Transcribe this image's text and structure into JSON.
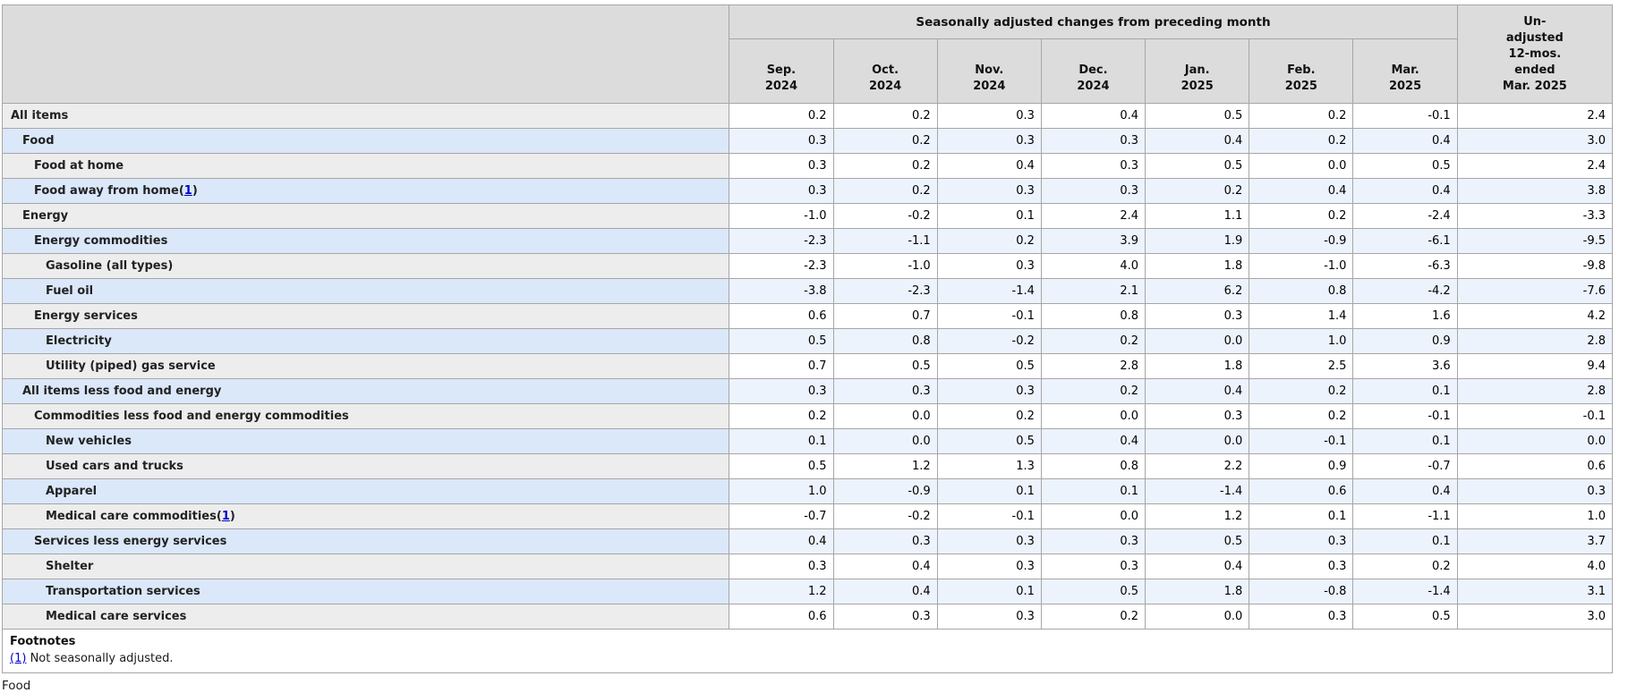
{
  "colors": {
    "header_bg": "#dcdcdc",
    "row_gray": "#ededed",
    "row_blue": "#dbe8fa",
    "data_blue": "#edf3fc",
    "border": "#a6a6a6",
    "link": "#0000cc"
  },
  "table": {
    "group_header": "Seasonally adjusted changes from preceding month",
    "unadjusted_header_lines": [
      "Un-",
      "adjusted",
      "12-mos.",
      "ended",
      "Mar. 2025"
    ],
    "columns": [
      {
        "month": "Sep.",
        "year": "2024"
      },
      {
        "month": "Oct.",
        "year": "2024"
      },
      {
        "month": "Nov.",
        "year": "2024"
      },
      {
        "month": "Dec.",
        "year": "2024"
      },
      {
        "month": "Jan.",
        "year": "2025"
      },
      {
        "month": "Feb.",
        "year": "2025"
      },
      {
        "month": "Mar.",
        "year": "2025"
      }
    ],
    "rows": [
      {
        "label": "All items",
        "indent": 0,
        "footnote": "",
        "values": [
          "0.2",
          "0.2",
          "0.3",
          "0.4",
          "0.5",
          "0.2",
          "-0.1",
          "2.4"
        ]
      },
      {
        "label": "Food",
        "indent": 1,
        "footnote": "",
        "values": [
          "0.3",
          "0.2",
          "0.3",
          "0.3",
          "0.4",
          "0.2",
          "0.4",
          "3.0"
        ]
      },
      {
        "label": "Food at home",
        "indent": 2,
        "footnote": "",
        "values": [
          "0.3",
          "0.2",
          "0.4",
          "0.3",
          "0.5",
          "0.0",
          "0.5",
          "2.4"
        ]
      },
      {
        "label": "Food away from home",
        "indent": 2,
        "footnote": "1",
        "values": [
          "0.3",
          "0.2",
          "0.3",
          "0.3",
          "0.2",
          "0.4",
          "0.4",
          "3.8"
        ]
      },
      {
        "label": "Energy",
        "indent": 1,
        "footnote": "",
        "values": [
          "-1.0",
          "-0.2",
          "0.1",
          "2.4",
          "1.1",
          "0.2",
          "-2.4",
          "-3.3"
        ]
      },
      {
        "label": "Energy commodities",
        "indent": 2,
        "footnote": "",
        "values": [
          "-2.3",
          "-1.1",
          "0.2",
          "3.9",
          "1.9",
          "-0.9",
          "-6.1",
          "-9.5"
        ]
      },
      {
        "label": "Gasoline (all types)",
        "indent": 3,
        "footnote": "",
        "values": [
          "-2.3",
          "-1.0",
          "0.3",
          "4.0",
          "1.8",
          "-1.0",
          "-6.3",
          "-9.8"
        ]
      },
      {
        "label": "Fuel oil",
        "indent": 3,
        "footnote": "",
        "values": [
          "-3.8",
          "-2.3",
          "-1.4",
          "2.1",
          "6.2",
          "0.8",
          "-4.2",
          "-7.6"
        ]
      },
      {
        "label": "Energy services",
        "indent": 2,
        "footnote": "",
        "values": [
          "0.6",
          "0.7",
          "-0.1",
          "0.8",
          "0.3",
          "1.4",
          "1.6",
          "4.2"
        ]
      },
      {
        "label": "Electricity",
        "indent": 3,
        "footnote": "",
        "values": [
          "0.5",
          "0.8",
          "-0.2",
          "0.2",
          "0.0",
          "1.0",
          "0.9",
          "2.8"
        ]
      },
      {
        "label": "Utility (piped) gas service",
        "indent": 3,
        "footnote": "",
        "values": [
          "0.7",
          "0.5",
          "0.5",
          "2.8",
          "1.8",
          "2.5",
          "3.6",
          "9.4"
        ]
      },
      {
        "label": "All items less food and energy",
        "indent": 1,
        "footnote": "",
        "values": [
          "0.3",
          "0.3",
          "0.3",
          "0.2",
          "0.4",
          "0.2",
          "0.1",
          "2.8"
        ]
      },
      {
        "label": "Commodities less food and energy commodities",
        "indent": 2,
        "footnote": "",
        "values": [
          "0.2",
          "0.0",
          "0.2",
          "0.0",
          "0.3",
          "0.2",
          "-0.1",
          "-0.1"
        ]
      },
      {
        "label": "New vehicles",
        "indent": 3,
        "footnote": "",
        "values": [
          "0.1",
          "0.0",
          "0.5",
          "0.4",
          "0.0",
          "-0.1",
          "0.1",
          "0.0"
        ]
      },
      {
        "label": "Used cars and trucks",
        "indent": 3,
        "footnote": "",
        "values": [
          "0.5",
          "1.2",
          "1.3",
          "0.8",
          "2.2",
          "0.9",
          "-0.7",
          "0.6"
        ]
      },
      {
        "label": "Apparel",
        "indent": 3,
        "footnote": "",
        "values": [
          "1.0",
          "-0.9",
          "0.1",
          "0.1",
          "-1.4",
          "0.6",
          "0.4",
          "0.3"
        ]
      },
      {
        "label": "Medical care commodities",
        "indent": 3,
        "footnote": "1",
        "values": [
          "-0.7",
          "-0.2",
          "-0.1",
          "0.0",
          "1.2",
          "0.1",
          "-1.1",
          "1.0"
        ]
      },
      {
        "label": "Services less energy services",
        "indent": 2,
        "footnote": "",
        "values": [
          "0.4",
          "0.3",
          "0.3",
          "0.3",
          "0.5",
          "0.3",
          "0.1",
          "3.7"
        ]
      },
      {
        "label": "Shelter",
        "indent": 3,
        "footnote": "",
        "values": [
          "0.3",
          "0.4",
          "0.3",
          "0.3",
          "0.4",
          "0.3",
          "0.2",
          "4.0"
        ]
      },
      {
        "label": "Transportation services",
        "indent": 3,
        "footnote": "",
        "values": [
          "1.2",
          "0.4",
          "0.1",
          "0.5",
          "1.8",
          "-0.8",
          "-1.4",
          "3.1"
        ]
      },
      {
        "label": "Medical care services",
        "indent": 3,
        "footnote": "",
        "values": [
          "0.6",
          "0.3",
          "0.3",
          "0.2",
          "0.0",
          "0.3",
          "0.5",
          "3.0"
        ]
      }
    ]
  },
  "footnotes": {
    "title": "Footnotes",
    "items": [
      {
        "marker": "(1)",
        "text": "Not seasonally adjusted."
      }
    ]
  },
  "below_text": "Food"
}
